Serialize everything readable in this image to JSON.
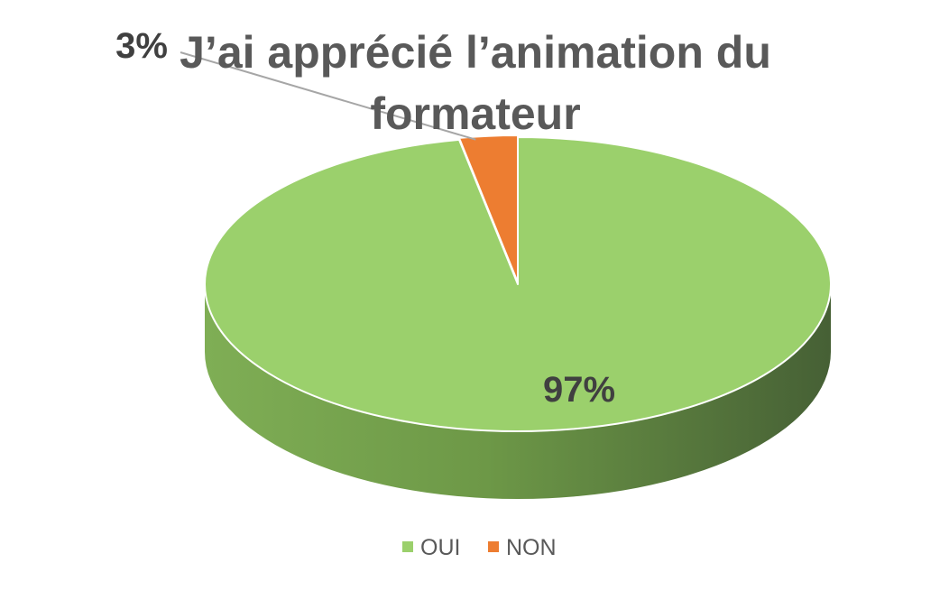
{
  "chart_data": {
    "type": "pie",
    "style": "3d",
    "title_lines": [
      "J’ai apprécié l’animation du",
      "formateur"
    ],
    "categories": [
      "OUI",
      "NON"
    ],
    "values": [
      97,
      3
    ],
    "labels": [
      "97%",
      "3%"
    ],
    "colors": [
      "#9BD06C",
      "#ED7D31"
    ],
    "legend": {
      "position": "bottom",
      "entries": [
        "OUI",
        "NON"
      ]
    }
  }
}
